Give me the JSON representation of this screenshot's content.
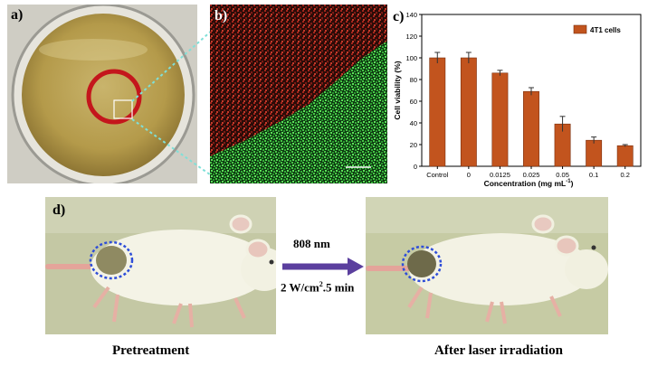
{
  "panel_a": {
    "label": "a)"
  },
  "panel_b": {
    "label": "b)",
    "scale_bar": ""
  },
  "panel_c": {
    "label": "c)",
    "legend": "4T1 cells",
    "colors": {
      "bar": "#c2541e",
      "bar_edge": "#7a2e0c"
    }
  },
  "chart_data": {
    "type": "bar",
    "categories": [
      "Control",
      "0",
      "0.0125",
      "0.025",
      "0.05",
      "0.1",
      "0.2"
    ],
    "series": [
      {
        "name": "4T1 cells",
        "values": [
          100,
          100,
          86,
          69,
          39,
          24,
          19
        ],
        "errors": [
          5,
          5,
          2.5,
          3.5,
          7,
          3,
          1
        ]
      }
    ],
    "xlabel": "Concentration (mg mL",
    "xlabel_sup": "-1",
    "xlabel_end": ")",
    "ylabel": "Cell viability (%)",
    "ylim": [
      0,
      140
    ],
    "yticks": [
      "0",
      "20",
      "40",
      "60",
      "80",
      "100",
      "120",
      "140"
    ],
    "legend_position": "top-right",
    "grid": false
  },
  "panel_d": {
    "label": "d)",
    "arrow_top": "808 nm",
    "arrow_bottom_a": "2 W/cm",
    "arrow_bottom_sup": "2",
    "arrow_bottom_b": ".5 min",
    "caption_left": "Pretreatment",
    "caption_right": "After laser irradiation",
    "colors": {
      "arrow": "#5b3f9e",
      "circle": "#2f4ed8"
    }
  }
}
